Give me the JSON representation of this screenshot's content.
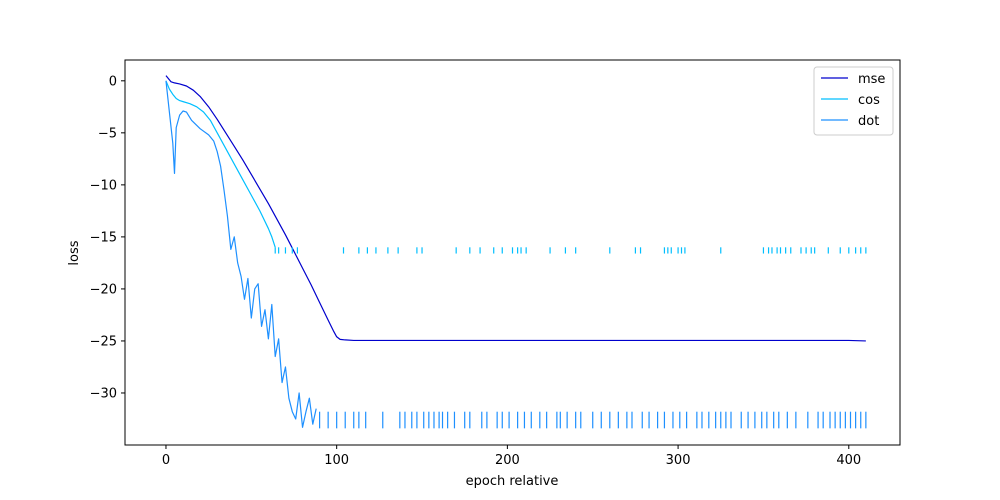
{
  "chart_data": {
    "type": "line",
    "xlabel": "epoch relative",
    "ylabel": "loss",
    "xlim": [
      -24,
      430
    ],
    "ylim": [
      -35,
      2
    ],
    "xticks": [
      0,
      100,
      200,
      300,
      400
    ],
    "yticks": [
      0,
      -5,
      -10,
      -15,
      -20,
      -25,
      -30
    ],
    "legend_position": "top-right",
    "grid": false,
    "series": [
      {
        "name": "mse",
        "color": "#0000cd",
        "x": [
          0,
          3,
          5,
          8,
          12,
          16,
          20,
          25,
          30,
          35,
          40,
          45,
          50,
          55,
          60,
          65,
          70,
          75,
          80,
          85,
          90,
          95,
          98,
          100,
          102,
          105,
          110,
          150,
          200,
          250,
          300,
          350,
          400,
          410
        ],
        "y": [
          0.5,
          -0.1,
          -0.2,
          -0.3,
          -0.5,
          -0.9,
          -1.5,
          -2.5,
          -3.7,
          -5.0,
          -6.3,
          -7.6,
          -9.0,
          -10.4,
          -11.8,
          -13.3,
          -14.8,
          -16.4,
          -18.0,
          -19.6,
          -21.3,
          -23.0,
          -24.0,
          -24.6,
          -24.85,
          -24.9,
          -24.95,
          -24.95,
          -24.95,
          -24.95,
          -24.95,
          -24.95,
          -24.95,
          -25.0
        ]
      },
      {
        "name": "cos",
        "color": "#00bfff",
        "x": [
          0,
          2,
          4,
          6,
          8,
          10,
          14,
          18,
          22,
          26,
          30,
          35,
          40,
          45,
          50,
          55,
          60,
          62,
          64
        ],
        "y": [
          0.0,
          -0.8,
          -1.3,
          -1.7,
          -1.9,
          -2.0,
          -2.2,
          -2.5,
          -3.0,
          -3.8,
          -5.0,
          -6.5,
          -8.0,
          -9.5,
          -11.0,
          -12.5,
          -14.2,
          -15.0,
          -16.0
        ],
        "spikes_x": [
          64,
          66,
          70,
          74,
          77,
          104,
          113,
          118,
          123,
          130,
          136,
          147,
          150,
          170,
          178,
          184,
          192,
          197,
          203,
          206,
          208,
          211,
          225,
          234,
          240,
          260,
          275,
          278,
          292,
          294,
          296,
          300,
          302,
          304,
          325,
          350,
          353,
          355,
          358,
          360,
          363,
          366,
          372,
          375,
          378,
          380,
          388,
          395,
          400,
          404,
          407,
          410
        ],
        "spikes_lo": -16.6,
        "spikes_hi": -16.0
      },
      {
        "name": "dot",
        "color": "#1e90ff",
        "x": [
          0,
          2,
          4,
          5,
          6,
          8,
          10,
          12,
          15,
          20,
          25,
          28,
          30,
          32,
          34,
          36,
          38,
          40,
          42,
          44,
          46,
          48,
          50,
          52,
          54,
          56,
          58,
          60,
          62,
          64,
          66,
          68,
          70,
          72,
          74,
          76,
          78,
          80,
          82,
          84,
          86,
          88
        ],
        "y": [
          0.0,
          -3.0,
          -6.0,
          -8.9,
          -4.5,
          -3.3,
          -2.9,
          -3.0,
          -3.8,
          -4.6,
          -5.2,
          -5.8,
          -6.8,
          -8.2,
          -10.5,
          -13.0,
          -16.2,
          -15.0,
          -17.5,
          -18.8,
          -21.0,
          -19.0,
          -22.8,
          -20.0,
          -19.5,
          -23.6,
          -22.0,
          -24.8,
          -21.5,
          -26.5,
          -24.8,
          -29.0,
          -27.5,
          -30.5,
          -31.8,
          -32.5,
          -30.0,
          -33.3,
          -31.8,
          -30.5,
          -33.0,
          -31.5
        ],
        "spikes_x": [
          90,
          95,
          100,
          105,
          110,
          113,
          117,
          127,
          137,
          140,
          144,
          147,
          151,
          154,
          157,
          160,
          162,
          165,
          169,
          175,
          178,
          185,
          188,
          194,
          197,
          201,
          206,
          210,
          214,
          219,
          223,
          229,
          231,
          235,
          240,
          243,
          250,
          255,
          260,
          265,
          270,
          273,
          279,
          283,
          288,
          292,
          297,
          301,
          305,
          311,
          314,
          318,
          322,
          325,
          328,
          331,
          337,
          341,
          345,
          349,
          352,
          356,
          359,
          364,
          369,
          376,
          382,
          385,
          389,
          392,
          395,
          398,
          401,
          404,
          407,
          410
        ],
        "spikes_lo": -33.4,
        "spikes_hi": -31.8
      }
    ]
  }
}
